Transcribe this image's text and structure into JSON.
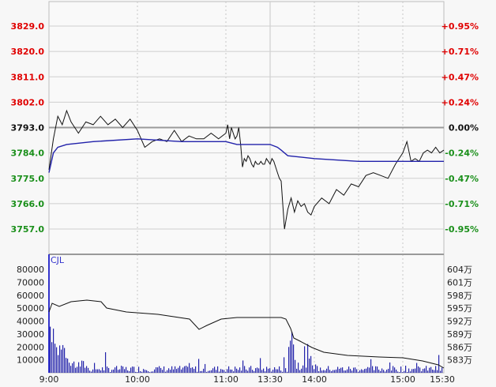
{
  "chart_data": [
    {
      "type": "line",
      "panel": "price",
      "y_ticks_left": [
        "3829.0",
        "3820.0",
        "3811.0",
        "3802.0",
        "3793.0",
        "3784.0",
        "3775.0",
        "3766.0",
        "3757.0"
      ],
      "y_ticks_right": [
        "+0.95%",
        "+0.71%",
        "+0.47%",
        "+0.24%",
        "0.00%",
        "-0.24%",
        "-0.47%",
        "-0.71%",
        "-0.95%"
      ],
      "ylim": [
        3757.0,
        3829.0
      ],
      "reference_price": 3793.0,
      "x_ticks": [
        "9:00",
        "10:00",
        "11:00",
        "13:30",
        "14:00",
        "15:00",
        "15:30"
      ],
      "series": [
        {
          "color": "#111111",
          "points": [
            [
              "9:00",
              3778
            ],
            [
              "9:03",
              3789
            ],
            [
              "9:06",
              3797
            ],
            [
              "9:09",
              3794
            ],
            [
              "9:12",
              3799
            ],
            [
              "9:15",
              3795
            ],
            [
              "9:20",
              3791
            ],
            [
              "9:25",
              3795
            ],
            [
              "9:30",
              3794
            ],
            [
              "9:35",
              3797
            ],
            [
              "9:40",
              3794
            ],
            [
              "9:45",
              3796
            ],
            [
              "9:50",
              3793
            ],
            [
              "9:55",
              3796
            ],
            [
              "10:00",
              3792
            ],
            [
              "10:05",
              3786
            ],
            [
              "10:10",
              3788
            ],
            [
              "10:15",
              3789
            ],
            [
              "10:20",
              3788
            ],
            [
              "10:25",
              3792
            ],
            [
              "10:30",
              3788
            ],
            [
              "10:35",
              3790
            ],
            [
              "10:40",
              3789
            ],
            [
              "10:45",
              3789
            ],
            [
              "10:50",
              3791
            ],
            [
              "10:55",
              3789
            ],
            [
              "11:00",
              3791
            ],
            [
              "11:05",
              3794
            ],
            [
              "11:10",
              3789
            ],
            [
              "11:15",
              3793
            ],
            [
              "11:20",
              3791
            ],
            [
              "11:25",
              3789
            ],
            [
              "11:30",
              3790
            ],
            [
              "11:35",
              3793
            ],
            [
              "11:40",
              3787
            ],
            [
              "11:45",
              3779
            ],
            [
              "11:50",
              3782
            ],
            [
              "11:55",
              3781
            ],
            [
              "12:00",
              3783
            ],
            [
              "12:05",
              3782
            ],
            [
              "12:10",
              3780
            ],
            [
              "12:15",
              3779
            ],
            [
              "12:20",
              3781
            ],
            [
              "12:25",
              3780
            ],
            [
              "12:30",
              3780
            ],
            [
              "12:35",
              3781
            ],
            [
              "12:40",
              3780
            ],
            [
              "12:45",
              3780
            ],
            [
              "12:50",
              3782
            ],
            [
              "12:55",
              3781
            ],
            [
              "13:00",
              3780
            ],
            [
              "13:05",
              3782
            ],
            [
              "13:10",
              3781
            ],
            [
              "13:15",
              3779
            ],
            [
              "13:20",
              3777
            ],
            [
              "13:25",
              3775
            ],
            [
              "13:30",
              3774
            ],
            [
              "13:33",
              3757
            ],
            [
              "13:36",
              3764
            ],
            [
              "13:39",
              3768
            ],
            [
              "13:42",
              3763
            ],
            [
              "13:45",
              3767
            ],
            [
              "13:48",
              3765
            ],
            [
              "13:51",
              3766
            ],
            [
              "13:54",
              3763
            ],
            [
              "13:57",
              3762
            ],
            [
              "14:00",
              3765
            ],
            [
              "14:05",
              3768
            ],
            [
              "14:10",
              3766
            ],
            [
              "14:15",
              3771
            ],
            [
              "14:20",
              3769
            ],
            [
              "14:25",
              3773
            ],
            [
              "14:30",
              3772
            ],
            [
              "14:35",
              3776
            ],
            [
              "14:40",
              3777
            ],
            [
              "14:45",
              3776
            ],
            [
              "14:50",
              3775
            ],
            [
              "14:55",
              3780
            ],
            [
              "15:00",
              3784
            ],
            [
              "15:03",
              3788
            ],
            [
              "15:06",
              3781
            ],
            [
              "15:09",
              3782
            ],
            [
              "15:12",
              3781
            ],
            [
              "15:15",
              3784
            ],
            [
              "15:18",
              3785
            ],
            [
              "15:21",
              3784
            ],
            [
              "15:24",
              3786
            ],
            [
              "15:27",
              3784
            ],
            [
              "15:30",
              3785
            ]
          ]
        },
        {
          "color": "#2222aa",
          "points": [
            [
              "9:00",
              3777
            ],
            [
              "9:03",
              3784
            ],
            [
              "9:06",
              3786
            ],
            [
              "9:12",
              3787
            ],
            [
              "9:30",
              3788
            ],
            [
              "10:00",
              3789
            ],
            [
              "10:30",
              3788
            ],
            [
              "11:00",
              3788
            ],
            [
              "11:30",
              3787
            ],
            [
              "12:00",
              3787
            ],
            [
              "12:30",
              3787
            ],
            [
              "13:00",
              3787
            ],
            [
              "13:20",
              3786
            ],
            [
              "13:30",
              3785
            ],
            [
              "13:36",
              3783
            ],
            [
              "14:00",
              3782
            ],
            [
              "14:30",
              3781
            ],
            [
              "15:00",
              3781
            ],
            [
              "15:30",
              3781
            ]
          ]
        }
      ]
    },
    {
      "type": "bar",
      "panel": "volume",
      "label": "CJL",
      "y_ticks_left": [
        "80000",
        "70000",
        "60000",
        "50000",
        "40000",
        "30000",
        "20000",
        "10000"
      ],
      "y_ticks_right": [
        "604万",
        "601万",
        "598万",
        "595万",
        "592万",
        "589万",
        "586万",
        "583万"
      ],
      "ylim": [
        0,
        85000
      ],
      "x_ticks": [
        "9:00",
        "10:00",
        "11:00",
        "13:30",
        "14:00",
        "15:00",
        "15:30"
      ],
      "bar_color": "#2222aa",
      "line_color": "#111111"
    }
  ]
}
